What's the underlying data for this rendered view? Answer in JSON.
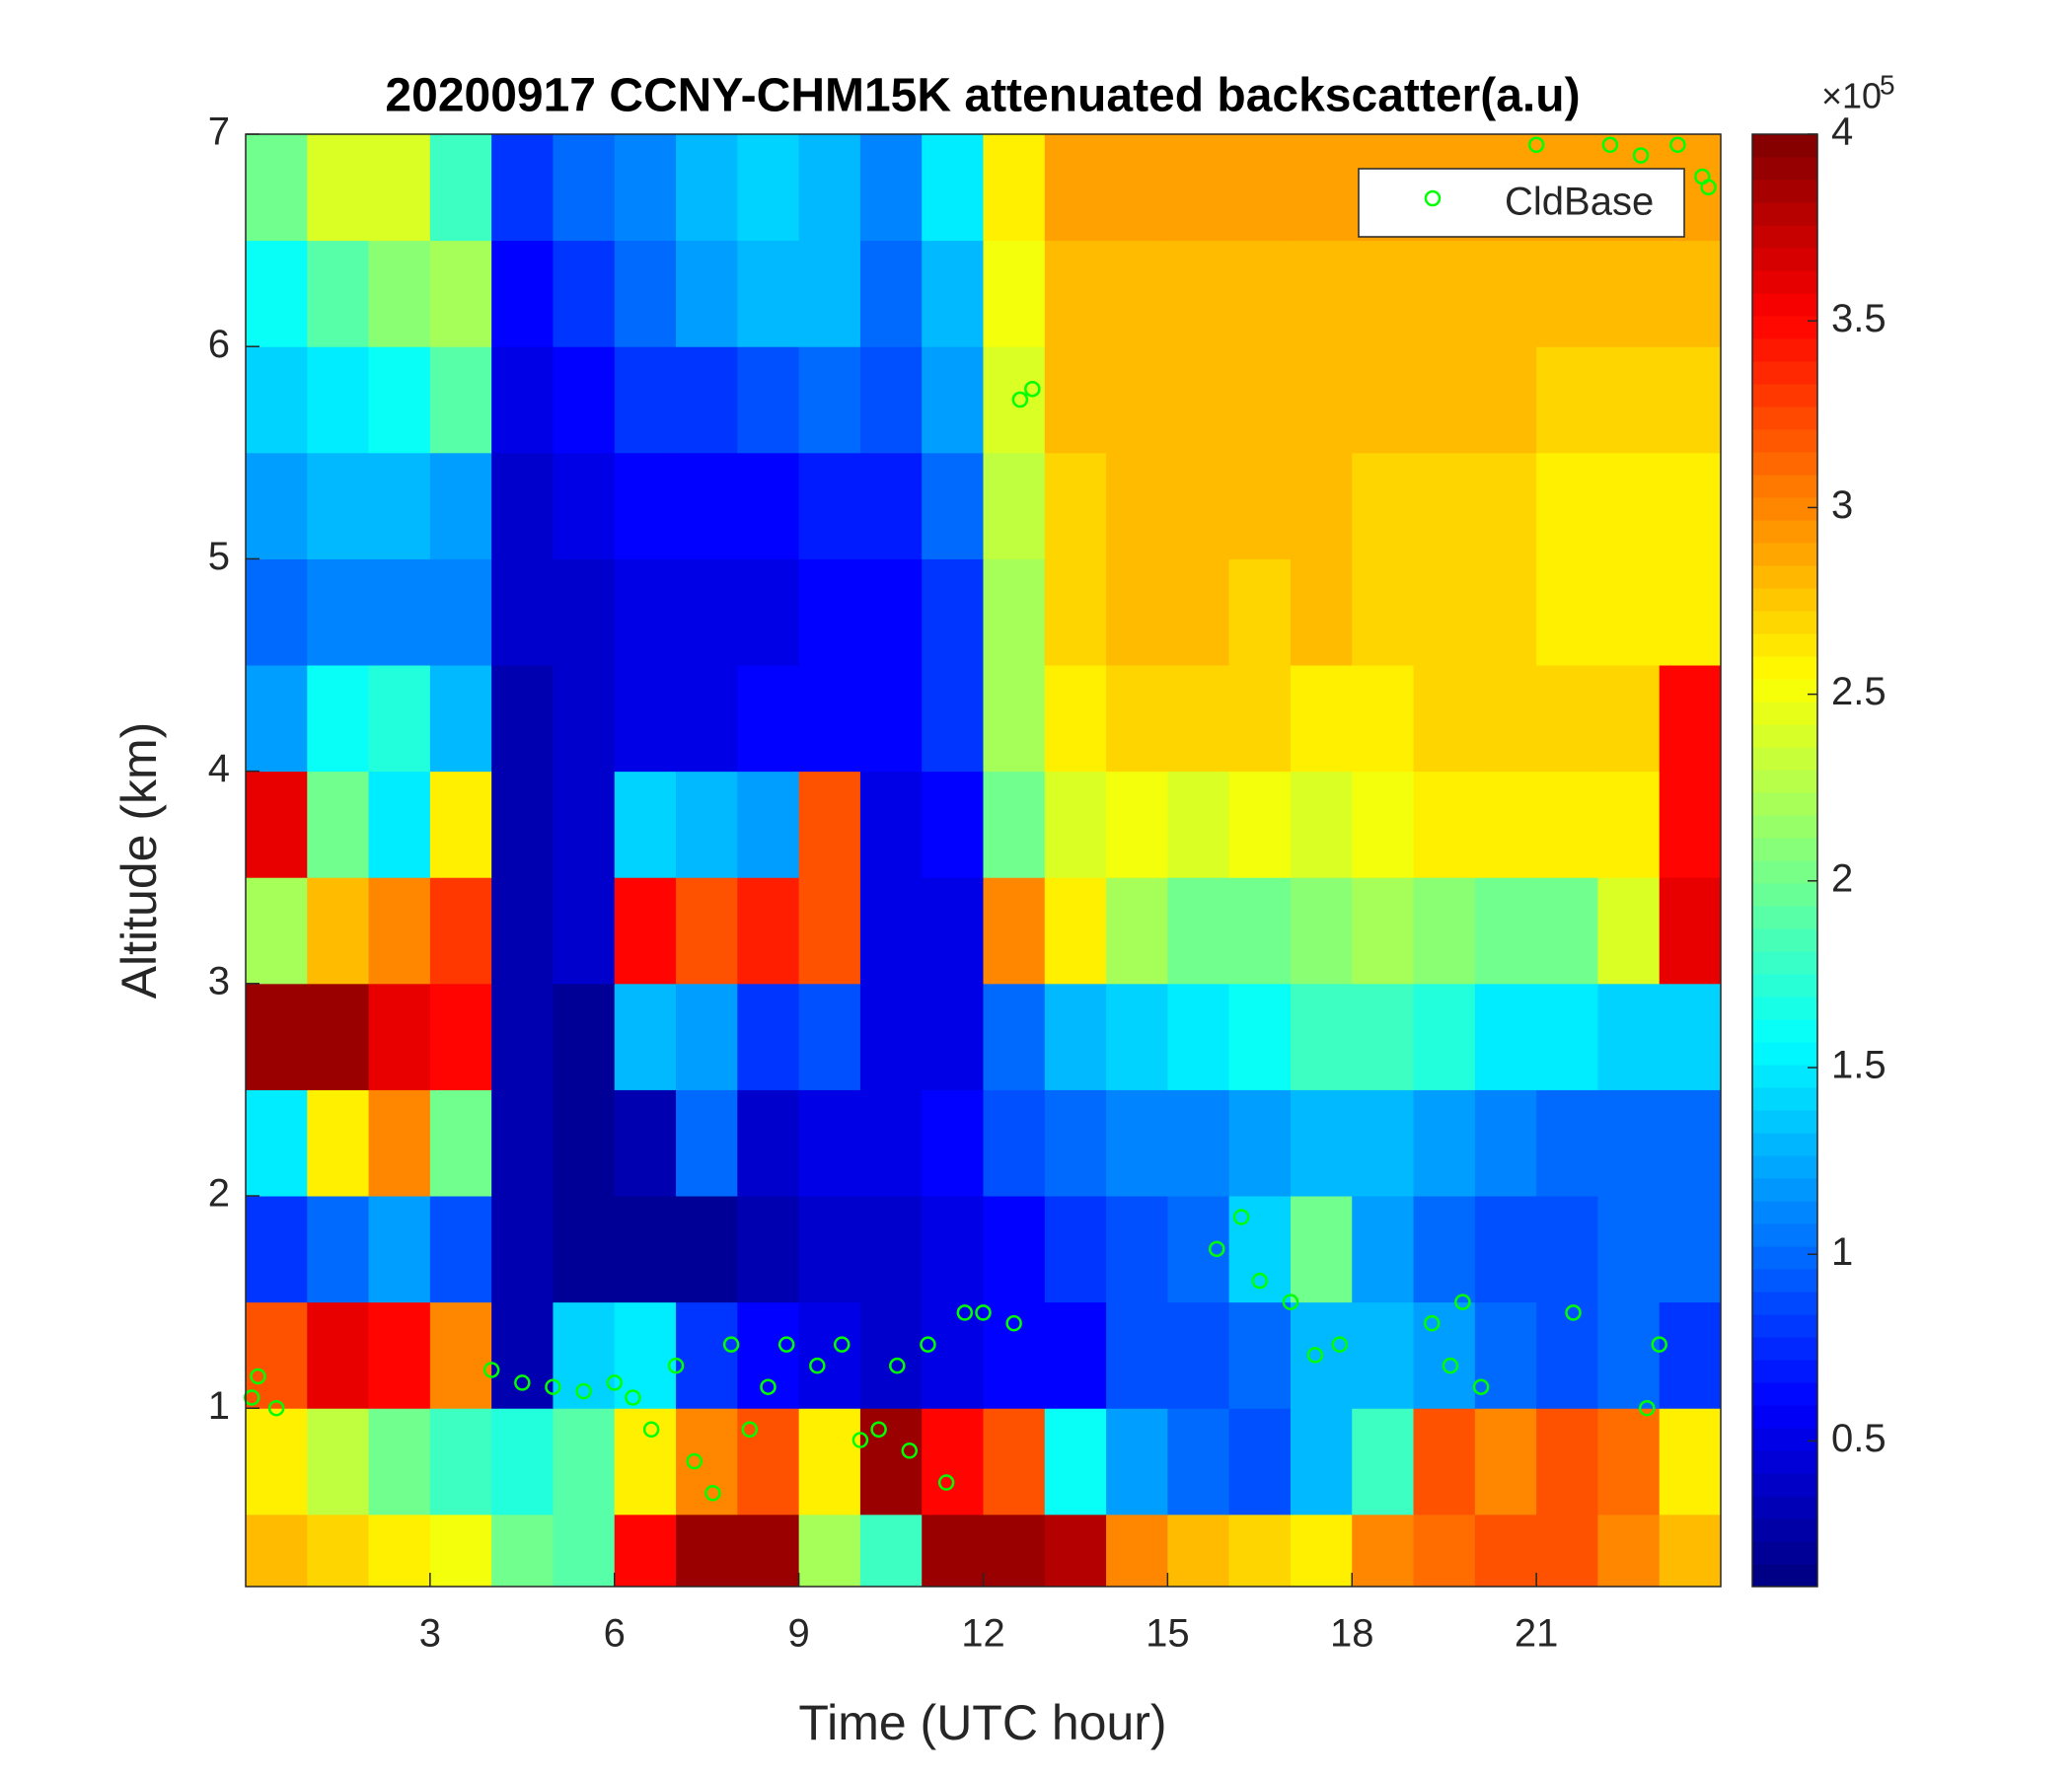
{
  "chart_data": {
    "type": "heatmap",
    "title": "20200917 CCNY-CHM15K attenuated backscatter(a.u)",
    "x_label": "Time (UTC hour)",
    "y_label": "Altitude (km)",
    "xlim": [
      0,
      24
    ],
    "xticks": [
      3,
      6,
      9,
      12,
      15,
      18,
      21
    ],
    "ylim": [
      0.16,
      7
    ],
    "yticks": [
      1,
      2,
      3,
      4,
      5,
      6,
      7
    ],
    "x_bins": [
      0,
      1,
      2,
      3,
      4,
      5,
      6,
      7,
      8,
      9,
      10,
      11,
      12,
      13,
      14,
      15,
      16,
      17,
      18,
      19,
      20,
      21,
      22,
      23,
      24
    ],
    "y_bins": [
      0.16,
      0.5,
      1,
      1.5,
      2,
      2.5,
      3,
      3.5,
      4,
      4.5,
      5,
      5.5,
      6,
      6.5,
      7
    ],
    "z": [
      [
        2.8,
        2.7,
        2.6,
        2.5,
        2.0,
        1.9,
        3.5,
        3.9,
        3.9,
        2.2,
        1.8,
        3.9,
        3.9,
        3.8,
        3.0,
        2.8,
        2.7,
        2.6,
        3.0,
        3.1,
        3.2,
        3.2,
        3.0,
        2.8
      ],
      [
        2.6,
        2.3,
        2.0,
        1.8,
        1.7,
        1.9,
        2.6,
        3.0,
        3.2,
        2.6,
        3.9,
        3.5,
        3.2,
        1.6,
        1.2,
        1.0,
        0.9,
        1.3,
        1.8,
        3.2,
        3.0,
        3.2,
        3.1,
        2.6
      ],
      [
        3.2,
        3.6,
        3.5,
        3.0,
        0.3,
        1.4,
        1.5,
        0.8,
        0.6,
        0.5,
        0.4,
        0.5,
        0.6,
        0.6,
        0.9,
        0.9,
        1.0,
        1.3,
        1.3,
        1.2,
        1.0,
        0.9,
        1.0,
        0.8
      ],
      [
        0.8,
        1.0,
        1.2,
        0.9,
        0.3,
        0.2,
        0.2,
        0.2,
        0.3,
        0.4,
        0.4,
        0.5,
        0.6,
        0.8,
        0.9,
        1.0,
        1.4,
        2.0,
        1.2,
        1.0,
        0.9,
        0.9,
        1.0,
        1.0
      ],
      [
        1.5,
        2.6,
        3.0,
        2.0,
        0.3,
        0.2,
        0.3,
        1.0,
        0.4,
        0.5,
        0.5,
        0.6,
        0.9,
        1.0,
        1.1,
        1.1,
        1.2,
        1.3,
        1.3,
        1.2,
        1.1,
        1.0,
        1.0,
        1.0
      ],
      [
        3.9,
        3.9,
        3.6,
        3.5,
        0.3,
        0.2,
        1.3,
        1.2,
        0.8,
        0.9,
        0.5,
        0.5,
        1.0,
        1.3,
        1.4,
        1.5,
        1.6,
        1.8,
        1.8,
        1.7,
        1.5,
        1.5,
        1.4,
        1.4
      ],
      [
        2.2,
        2.8,
        3.0,
        3.3,
        0.3,
        0.4,
        3.5,
        3.2,
        3.4,
        3.2,
        0.5,
        0.5,
        3.0,
        2.6,
        2.2,
        2.0,
        2.0,
        2.1,
        2.2,
        2.1,
        2.0,
        2.0,
        2.4,
        3.6
      ],
      [
        3.6,
        2.0,
        1.5,
        2.6,
        0.3,
        0.4,
        1.4,
        1.3,
        1.2,
        3.2,
        0.5,
        0.6,
        2.0,
        2.4,
        2.5,
        2.4,
        2.5,
        2.4,
        2.5,
        2.6,
        2.6,
        2.6,
        2.6,
        3.5
      ],
      [
        1.2,
        1.6,
        1.7,
        1.3,
        0.3,
        0.4,
        0.5,
        0.5,
        0.6,
        0.6,
        0.6,
        0.8,
        2.2,
        2.6,
        2.7,
        2.7,
        2.7,
        2.6,
        2.6,
        2.7,
        2.7,
        2.7,
        2.7,
        3.5
      ],
      [
        1.0,
        1.1,
        1.1,
        1.1,
        0.4,
        0.4,
        0.5,
        0.5,
        0.5,
        0.6,
        0.6,
        0.8,
        2.2,
        2.7,
        2.8,
        2.8,
        2.7,
        2.8,
        2.7,
        2.7,
        2.7,
        2.6,
        2.6,
        2.6
      ],
      [
        1.2,
        1.3,
        1.3,
        1.2,
        0.4,
        0.5,
        0.6,
        0.6,
        0.6,
        0.7,
        0.7,
        1.0,
        2.3,
        2.7,
        2.8,
        2.8,
        2.8,
        2.8,
        2.7,
        2.7,
        2.7,
        2.6,
        2.6,
        2.6
      ],
      [
        1.4,
        1.5,
        1.6,
        1.9,
        0.5,
        0.6,
        0.8,
        0.8,
        0.9,
        1.0,
        0.9,
        1.2,
        2.4,
        2.8,
        2.8,
        2.8,
        2.8,
        2.8,
        2.8,
        2.8,
        2.8,
        2.7,
        2.7,
        2.7
      ],
      [
        1.6,
        1.9,
        2.1,
        2.2,
        0.6,
        0.8,
        1.0,
        1.2,
        1.3,
        1.3,
        1.0,
        1.3,
        2.5,
        2.8,
        2.8,
        2.8,
        2.8,
        2.8,
        2.8,
        2.8,
        2.8,
        2.8,
        2.8,
        2.8
      ],
      [
        2.0,
        2.4,
        2.4,
        1.8,
        0.8,
        1.0,
        1.1,
        1.3,
        1.4,
        1.3,
        1.1,
        1.5,
        2.6,
        2.9,
        2.9,
        2.9,
        2.9,
        2.9,
        2.9,
        2.9,
        2.9,
        2.9,
        2.9,
        2.9
      ]
    ],
    "colormap": "jet",
    "clim": [
      0.11,
      4
    ],
    "cticks": [
      0.5,
      1,
      1.5,
      2,
      2.5,
      3,
      3.5,
      4
    ],
    "colorbar_multiplier": "×10",
    "colorbar_exponent": "5",
    "series": [
      {
        "name": "CldBase",
        "type": "scatter",
        "color": "#00ff00",
        "x": [
          0.1,
          0.2,
          0.5,
          4,
          4.5,
          5,
          5.5,
          6,
          6.3,
          6.6,
          7,
          7.3,
          7.6,
          7.9,
          8.2,
          8.5,
          8.8,
          9.3,
          9.7,
          10.0,
          10.3,
          10.6,
          10.8,
          11.1,
          11.4,
          11.7,
          12.0,
          12.5,
          12.6,
          12.8,
          15.8,
          16.2,
          16.5,
          17,
          17.4,
          17.8,
          19.3,
          19.6,
          19.8,
          20.1,
          21.6,
          22.8,
          23,
          21.0,
          22.2,
          22.7,
          23.3,
          23.7,
          23.8
        ],
        "y": [
          1.05,
          1.15,
          1.0,
          1.18,
          1.12,
          1.1,
          1.08,
          1.12,
          1.05,
          0.9,
          1.2,
          0.75,
          0.6,
          1.3,
          0.9,
          1.1,
          1.3,
          1.2,
          1.3,
          0.85,
          0.9,
          1.2,
          0.8,
          1.3,
          0.65,
          1.45,
          1.45,
          1.4,
          5.75,
          5.8,
          1.75,
          1.9,
          1.6,
          1.5,
          1.25,
          1.3,
          1.4,
          1.2,
          1.5,
          1.1,
          1.45,
          1.0,
          1.3,
          6.95,
          6.95,
          6.9,
          6.95,
          6.8,
          6.75
        ]
      }
    ],
    "legend": "northeast"
  }
}
